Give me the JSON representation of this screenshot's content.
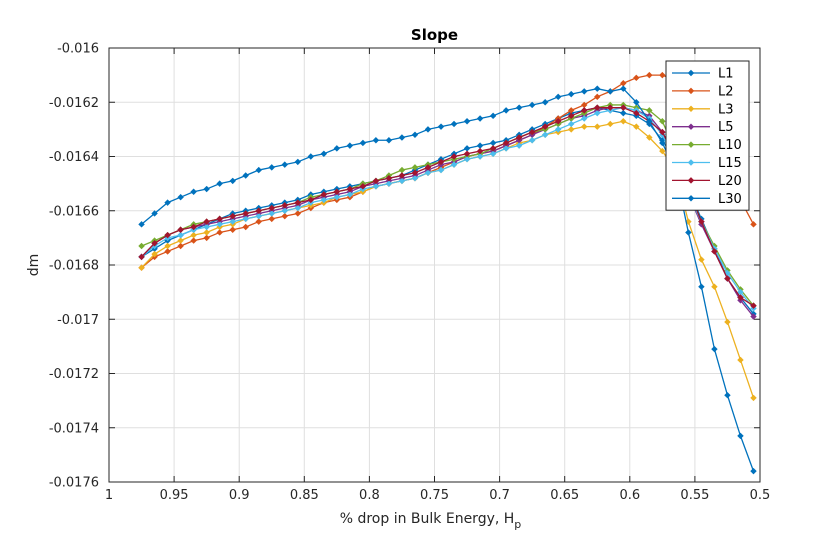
{
  "chart_data": {
    "type": "line",
    "title": "Slope",
    "xlabel": "% drop in Bulk Energy, H",
    "xlabel_subscript": "p",
    "ylabel": "dm",
    "xlim": [
      1,
      0.5
    ],
    "ylim": [
      -0.0176,
      -0.016
    ],
    "x_reversed": true,
    "grid": true,
    "legend_position": "top-right",
    "x_ticks": [
      1,
      0.95,
      0.9,
      0.85,
      0.8,
      0.75,
      0.7,
      0.65,
      0.6,
      0.55,
      0.5
    ],
    "x_tick_labels": [
      "1",
      "0.95",
      "0.9",
      "0.85",
      "0.8",
      "0.75",
      "0.7",
      "0.65",
      "0.6",
      "0.55",
      "0.5"
    ],
    "y_ticks": [
      -0.016,
      -0.0162,
      -0.0164,
      -0.0166,
      -0.0168,
      -0.017,
      -0.0172,
      -0.0174,
      -0.0176
    ],
    "y_tick_labels": [
      "-0.016",
      "-0.0162",
      "-0.0164",
      "-0.0166",
      "-0.0168",
      "-0.017",
      "-0.0172",
      "-0.0174",
      "-0.0176"
    ],
    "x": [
      0.975,
      0.965,
      0.955,
      0.945,
      0.935,
      0.925,
      0.915,
      0.905,
      0.895,
      0.885,
      0.875,
      0.865,
      0.855,
      0.845,
      0.835,
      0.825,
      0.815,
      0.805,
      0.795,
      0.785,
      0.775,
      0.765,
      0.755,
      0.745,
      0.735,
      0.725,
      0.715,
      0.705,
      0.695,
      0.685,
      0.675,
      0.665,
      0.655,
      0.645,
      0.635,
      0.625,
      0.615,
      0.605,
      0.595,
      0.585,
      0.575,
      0.565,
      0.555,
      0.545,
      0.535,
      0.525,
      0.515,
      0.505
    ],
    "series": [
      {
        "name": "L1",
        "color": "#0072BD",
        "values": [
          -0.01677,
          -0.01674,
          -0.01671,
          -0.01669,
          -0.01667,
          -0.01665,
          -0.01663,
          -0.01661,
          -0.0166,
          -0.01659,
          -0.01658,
          -0.01657,
          -0.01656,
          -0.01654,
          -0.01653,
          -0.01652,
          -0.01651,
          -0.0165,
          -0.01649,
          -0.01648,
          -0.01647,
          -0.01645,
          -0.01643,
          -0.01641,
          -0.01639,
          -0.01637,
          -0.01636,
          -0.01635,
          -0.01634,
          -0.01632,
          -0.0163,
          -0.01628,
          -0.01626,
          -0.01624,
          -0.01623,
          -0.01622,
          -0.01623,
          -0.01624,
          -0.01625,
          -0.01628,
          -0.01634,
          -0.01642,
          -0.01652,
          -0.01663,
          -0.01674,
          -0.01685,
          -0.01692,
          -0.01698
        ]
      },
      {
        "name": "L2",
        "color": "#D95319",
        "values": [
          -0.01681,
          -0.01677,
          -0.01675,
          -0.01673,
          -0.01671,
          -0.0167,
          -0.01668,
          -0.01667,
          -0.01666,
          -0.01664,
          -0.01663,
          -0.01662,
          -0.01661,
          -0.01659,
          -0.01657,
          -0.01656,
          -0.01655,
          -0.01653,
          -0.01651,
          -0.0165,
          -0.01649,
          -0.01648,
          -0.01646,
          -0.01644,
          -0.01642,
          -0.0164,
          -0.01639,
          -0.01638,
          -0.01636,
          -0.01634,
          -0.01632,
          -0.01629,
          -0.01626,
          -0.01623,
          -0.01621,
          -0.01618,
          -0.01616,
          -0.01613,
          -0.01611,
          -0.0161,
          -0.0161,
          -0.01612,
          -0.01617,
          -0.01625,
          -0.01635,
          -0.01645,
          -0.01656,
          -0.01665
        ]
      },
      {
        "name": "L3",
        "color": "#EDB120",
        "values": [
          -0.01681,
          -0.01676,
          -0.01673,
          -0.01671,
          -0.01669,
          -0.01668,
          -0.01666,
          -0.01665,
          -0.01663,
          -0.01662,
          -0.01661,
          -0.0166,
          -0.01659,
          -0.01658,
          -0.01657,
          -0.01655,
          -0.01654,
          -0.01653,
          -0.01651,
          -0.0165,
          -0.01649,
          -0.01648,
          -0.01646,
          -0.01645,
          -0.01643,
          -0.01641,
          -0.0164,
          -0.01639,
          -0.01637,
          -0.01635,
          -0.01634,
          -0.01632,
          -0.01631,
          -0.0163,
          -0.01629,
          -0.01629,
          -0.01628,
          -0.01627,
          -0.01629,
          -0.01633,
          -0.01638,
          -0.01645,
          -0.01664,
          -0.01678,
          -0.01688,
          -0.01701,
          -0.01715,
          -0.01729
        ]
      },
      {
        "name": "L5",
        "color": "#7E2F8E",
        "values": [
          -0.01677,
          -0.01672,
          -0.01669,
          -0.01667,
          -0.01666,
          -0.01665,
          -0.01664,
          -0.01663,
          -0.01662,
          -0.01661,
          -0.0166,
          -0.01659,
          -0.01658,
          -0.01656,
          -0.01655,
          -0.01654,
          -0.01653,
          -0.01651,
          -0.0165,
          -0.01649,
          -0.01648,
          -0.01647,
          -0.01645,
          -0.01643,
          -0.01642,
          -0.0164,
          -0.01639,
          -0.01638,
          -0.01636,
          -0.01634,
          -0.01632,
          -0.0163,
          -0.01628,
          -0.01626,
          -0.01625,
          -0.01623,
          -0.01622,
          -0.01622,
          -0.01623,
          -0.01625,
          -0.01631,
          -0.01641,
          -0.01654,
          -0.01665,
          -0.01675,
          -0.01685,
          -0.01693,
          -0.01699
        ]
      },
      {
        "name": "L10",
        "color": "#77AC30",
        "values": [
          -0.01673,
          -0.01671,
          -0.01669,
          -0.01667,
          -0.01665,
          -0.01664,
          -0.01663,
          -0.01662,
          -0.01661,
          -0.0166,
          -0.01659,
          -0.01658,
          -0.01657,
          -0.01655,
          -0.01654,
          -0.01653,
          -0.01652,
          -0.0165,
          -0.01649,
          -0.01647,
          -0.01645,
          -0.01644,
          -0.01643,
          -0.01642,
          -0.01641,
          -0.0164,
          -0.01639,
          -0.01637,
          -0.01635,
          -0.01633,
          -0.01631,
          -0.0163,
          -0.01628,
          -0.01626,
          -0.01624,
          -0.01622,
          -0.01621,
          -0.01621,
          -0.01622,
          -0.01623,
          -0.01627,
          -0.01638,
          -0.01652,
          -0.01664,
          -0.01673,
          -0.01682,
          -0.01689,
          -0.01695
        ]
      },
      {
        "name": "L15",
        "color": "#4DBEEE",
        "values": [
          -0.01677,
          -0.01673,
          -0.0167,
          -0.01669,
          -0.01667,
          -0.01666,
          -0.01665,
          -0.01664,
          -0.01663,
          -0.01662,
          -0.01661,
          -0.0166,
          -0.01659,
          -0.01657,
          -0.01656,
          -0.01655,
          -0.01654,
          -0.01652,
          -0.01651,
          -0.0165,
          -0.01649,
          -0.01648,
          -0.01646,
          -0.01645,
          -0.01643,
          -0.01641,
          -0.0164,
          -0.01639,
          -0.01637,
          -0.01636,
          -0.01634,
          -0.01632,
          -0.0163,
          -0.01628,
          -0.01626,
          -0.01624,
          -0.01623,
          -0.01622,
          -0.01623,
          -0.01626,
          -0.01632,
          -0.01642,
          -0.01654,
          -0.01664,
          -0.01674,
          -0.01683,
          -0.0169,
          -0.01696
        ]
      },
      {
        "name": "L20",
        "color": "#A2142F",
        "values": [
          -0.01677,
          -0.01672,
          -0.01669,
          -0.01667,
          -0.01666,
          -0.01664,
          -0.01663,
          -0.01662,
          -0.01661,
          -0.0166,
          -0.01659,
          -0.01658,
          -0.01657,
          -0.01656,
          -0.01654,
          -0.01653,
          -0.01652,
          -0.01651,
          -0.01649,
          -0.01648,
          -0.01647,
          -0.01646,
          -0.01644,
          -0.01642,
          -0.0164,
          -0.01639,
          -0.01638,
          -0.01637,
          -0.01635,
          -0.01633,
          -0.01631,
          -0.01629,
          -0.01627,
          -0.01625,
          -0.01623,
          -0.01622,
          -0.01622,
          -0.01622,
          -0.01624,
          -0.01627,
          -0.01631,
          -0.0164,
          -0.01652,
          -0.01664,
          -0.01675,
          -0.01685,
          -0.01692,
          -0.01695
        ]
      },
      {
        "name": "L30",
        "color": "#0072BD",
        "values": [
          -0.01665,
          -0.01661,
          -0.01657,
          -0.01655,
          -0.01653,
          -0.01652,
          -0.0165,
          -0.01649,
          -0.01647,
          -0.01645,
          -0.01644,
          -0.01643,
          -0.01642,
          -0.0164,
          -0.01639,
          -0.01637,
          -0.01636,
          -0.01635,
          -0.01634,
          -0.01634,
          -0.01633,
          -0.01632,
          -0.0163,
          -0.01629,
          -0.01628,
          -0.01627,
          -0.01626,
          -0.01625,
          -0.01623,
          -0.01622,
          -0.01621,
          -0.0162,
          -0.01618,
          -0.01617,
          -0.01616,
          -0.01615,
          -0.01616,
          -0.01615,
          -0.0162,
          -0.01627,
          -0.01635,
          -0.01645,
          -0.01668,
          -0.01688,
          -0.01711,
          -0.01728,
          -0.01743,
          -0.01756
        ]
      }
    ]
  }
}
